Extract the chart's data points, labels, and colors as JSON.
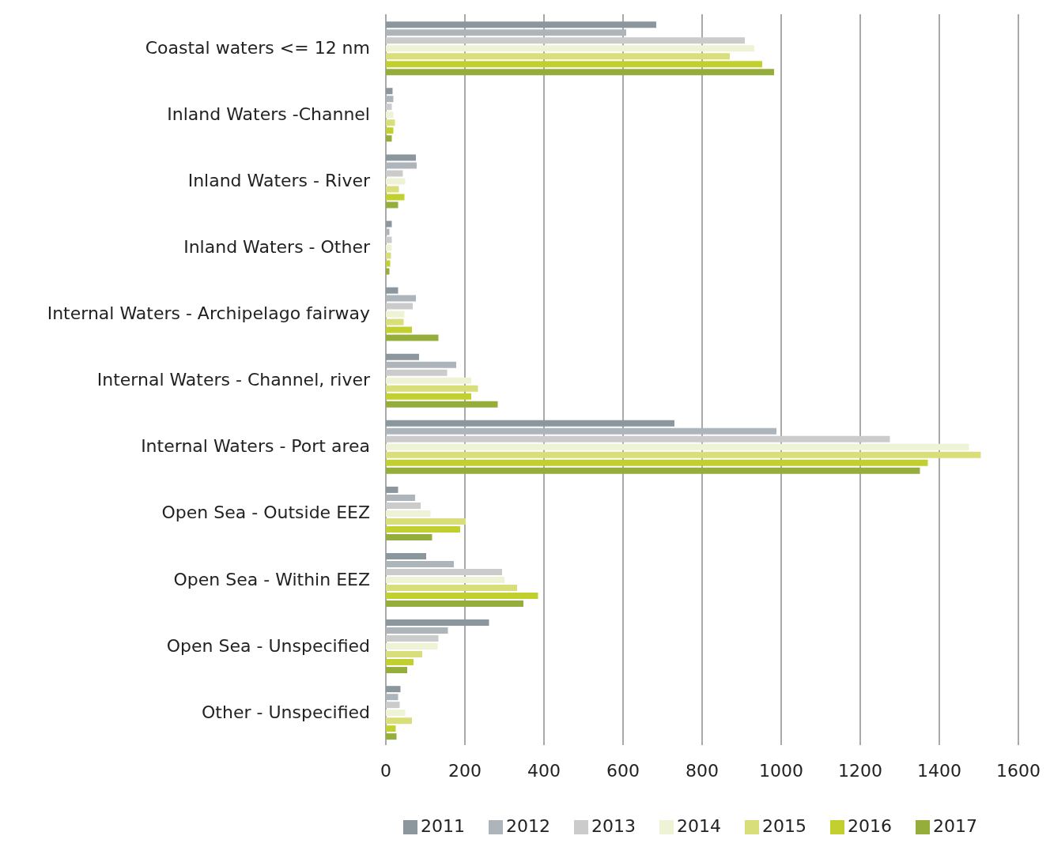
{
  "chart_data": {
    "type": "bar",
    "orientation": "horizontal",
    "categories": [
      "Coastal waters <= 12 nm",
      "Inland Waters -Channel",
      "Inland Waters - River",
      "Inland Waters - Other",
      "Internal Waters - Archipelago fairway",
      "Internal Waters - Channel, river",
      "Internal Waters - Port area",
      "Open Sea - Outside EEZ",
      "Open Sea - Within EEZ",
      "Open Sea - Unspecified",
      "Other - Unspecified"
    ],
    "series": [
      {
        "name": "2011",
        "color": "#8c979d",
        "values": [
          684,
          17,
          76,
          15,
          31,
          84,
          730,
          31,
          102,
          261,
          37
        ]
      },
      {
        "name": "2012",
        "color": "#adb5bb",
        "values": [
          608,
          19,
          78,
          9,
          76,
          178,
          988,
          74,
          172,
          157,
          31
        ]
      },
      {
        "name": "2013",
        "color": "#cbcbcb",
        "values": [
          908,
          15,
          43,
          15,
          68,
          155,
          1275,
          88,
          294,
          133,
          35
        ]
      },
      {
        "name": "2014",
        "color": "#eef3d6",
        "values": [
          932,
          19,
          49,
          15,
          47,
          216,
          1475,
          113,
          300,
          131,
          49
        ]
      },
      {
        "name": "2015",
        "color": "#d8de7a",
        "values": [
          870,
          23,
          33,
          13,
          45,
          233,
          1505,
          202,
          332,
          92,
          66
        ]
      },
      {
        "name": "2016",
        "color": "#c1cf2f",
        "values": [
          952,
          19,
          47,
          11,
          66,
          216,
          1371,
          188,
          385,
          70,
          25
        ]
      },
      {
        "name": "2017",
        "color": "#95ad3b",
        "values": [
          982,
          15,
          31,
          9,
          133,
          283,
          1351,
          117,
          348,
          54,
          27
        ]
      }
    ],
    "xlim": [
      0,
      1600
    ],
    "xticks": [
      0,
      200,
      400,
      600,
      800,
      1000,
      1200,
      1400,
      1600
    ],
    "grid": "x",
    "legend": "bottom"
  }
}
